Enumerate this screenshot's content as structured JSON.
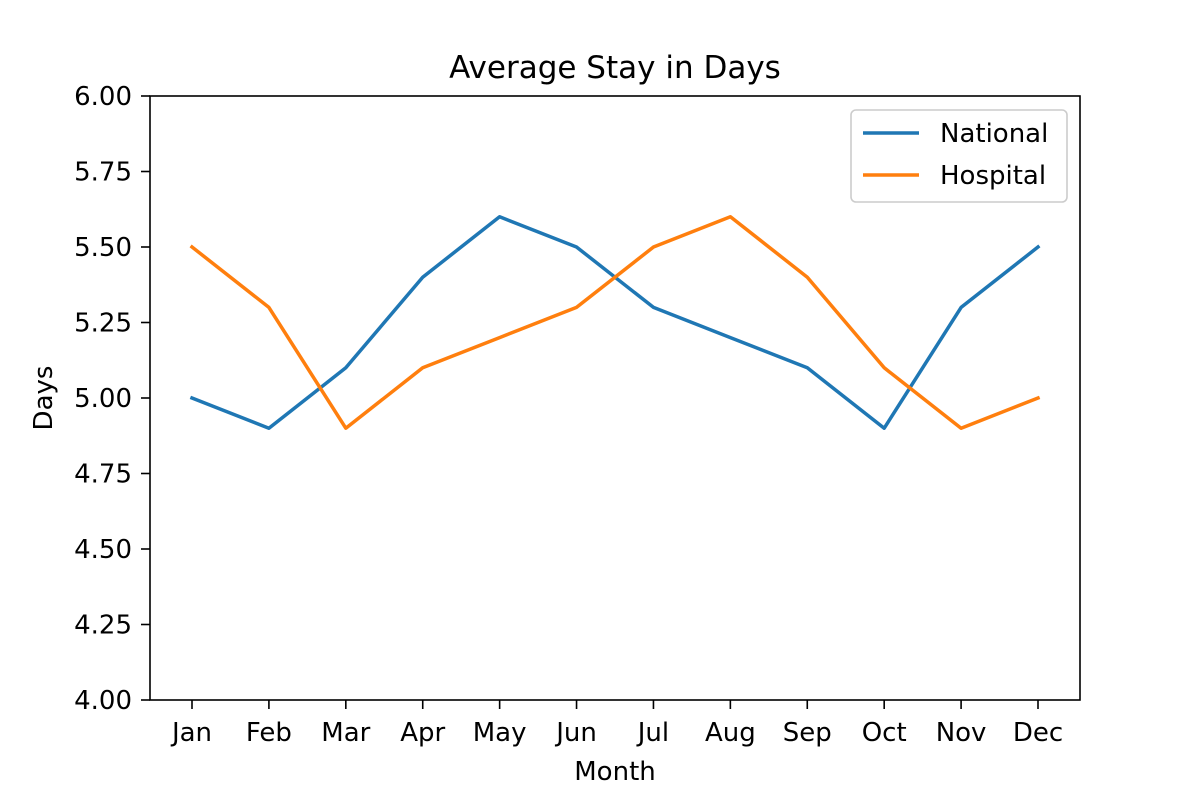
{
  "chart_data": {
    "type": "line",
    "title": "Average Stay in Days",
    "xlabel": "Month",
    "ylabel": "Days",
    "categories": [
      "Jan",
      "Feb",
      "Mar",
      "Apr",
      "May",
      "Jun",
      "Jul",
      "Aug",
      "Sep",
      "Oct",
      "Nov",
      "Dec"
    ],
    "ylim": [
      4.0,
      6.0
    ],
    "yticks": [
      "4.00",
      "4.25",
      "4.50",
      "4.75",
      "5.00",
      "5.25",
      "5.50",
      "5.75",
      "6.00"
    ],
    "grid": false,
    "legend_position": "top-right",
    "series": [
      {
        "name": "National",
        "color": "#1f77b4",
        "values": [
          5.0,
          4.9,
          5.1,
          5.4,
          5.6,
          5.5,
          5.3,
          5.2,
          5.1,
          4.9,
          5.3,
          5.5
        ]
      },
      {
        "name": "Hospital",
        "color": "#ff7f0e",
        "values": [
          5.5,
          5.3,
          4.9,
          5.1,
          5.2,
          5.3,
          5.5,
          5.6,
          5.4,
          5.1,
          4.9,
          5.0
        ]
      }
    ]
  }
}
